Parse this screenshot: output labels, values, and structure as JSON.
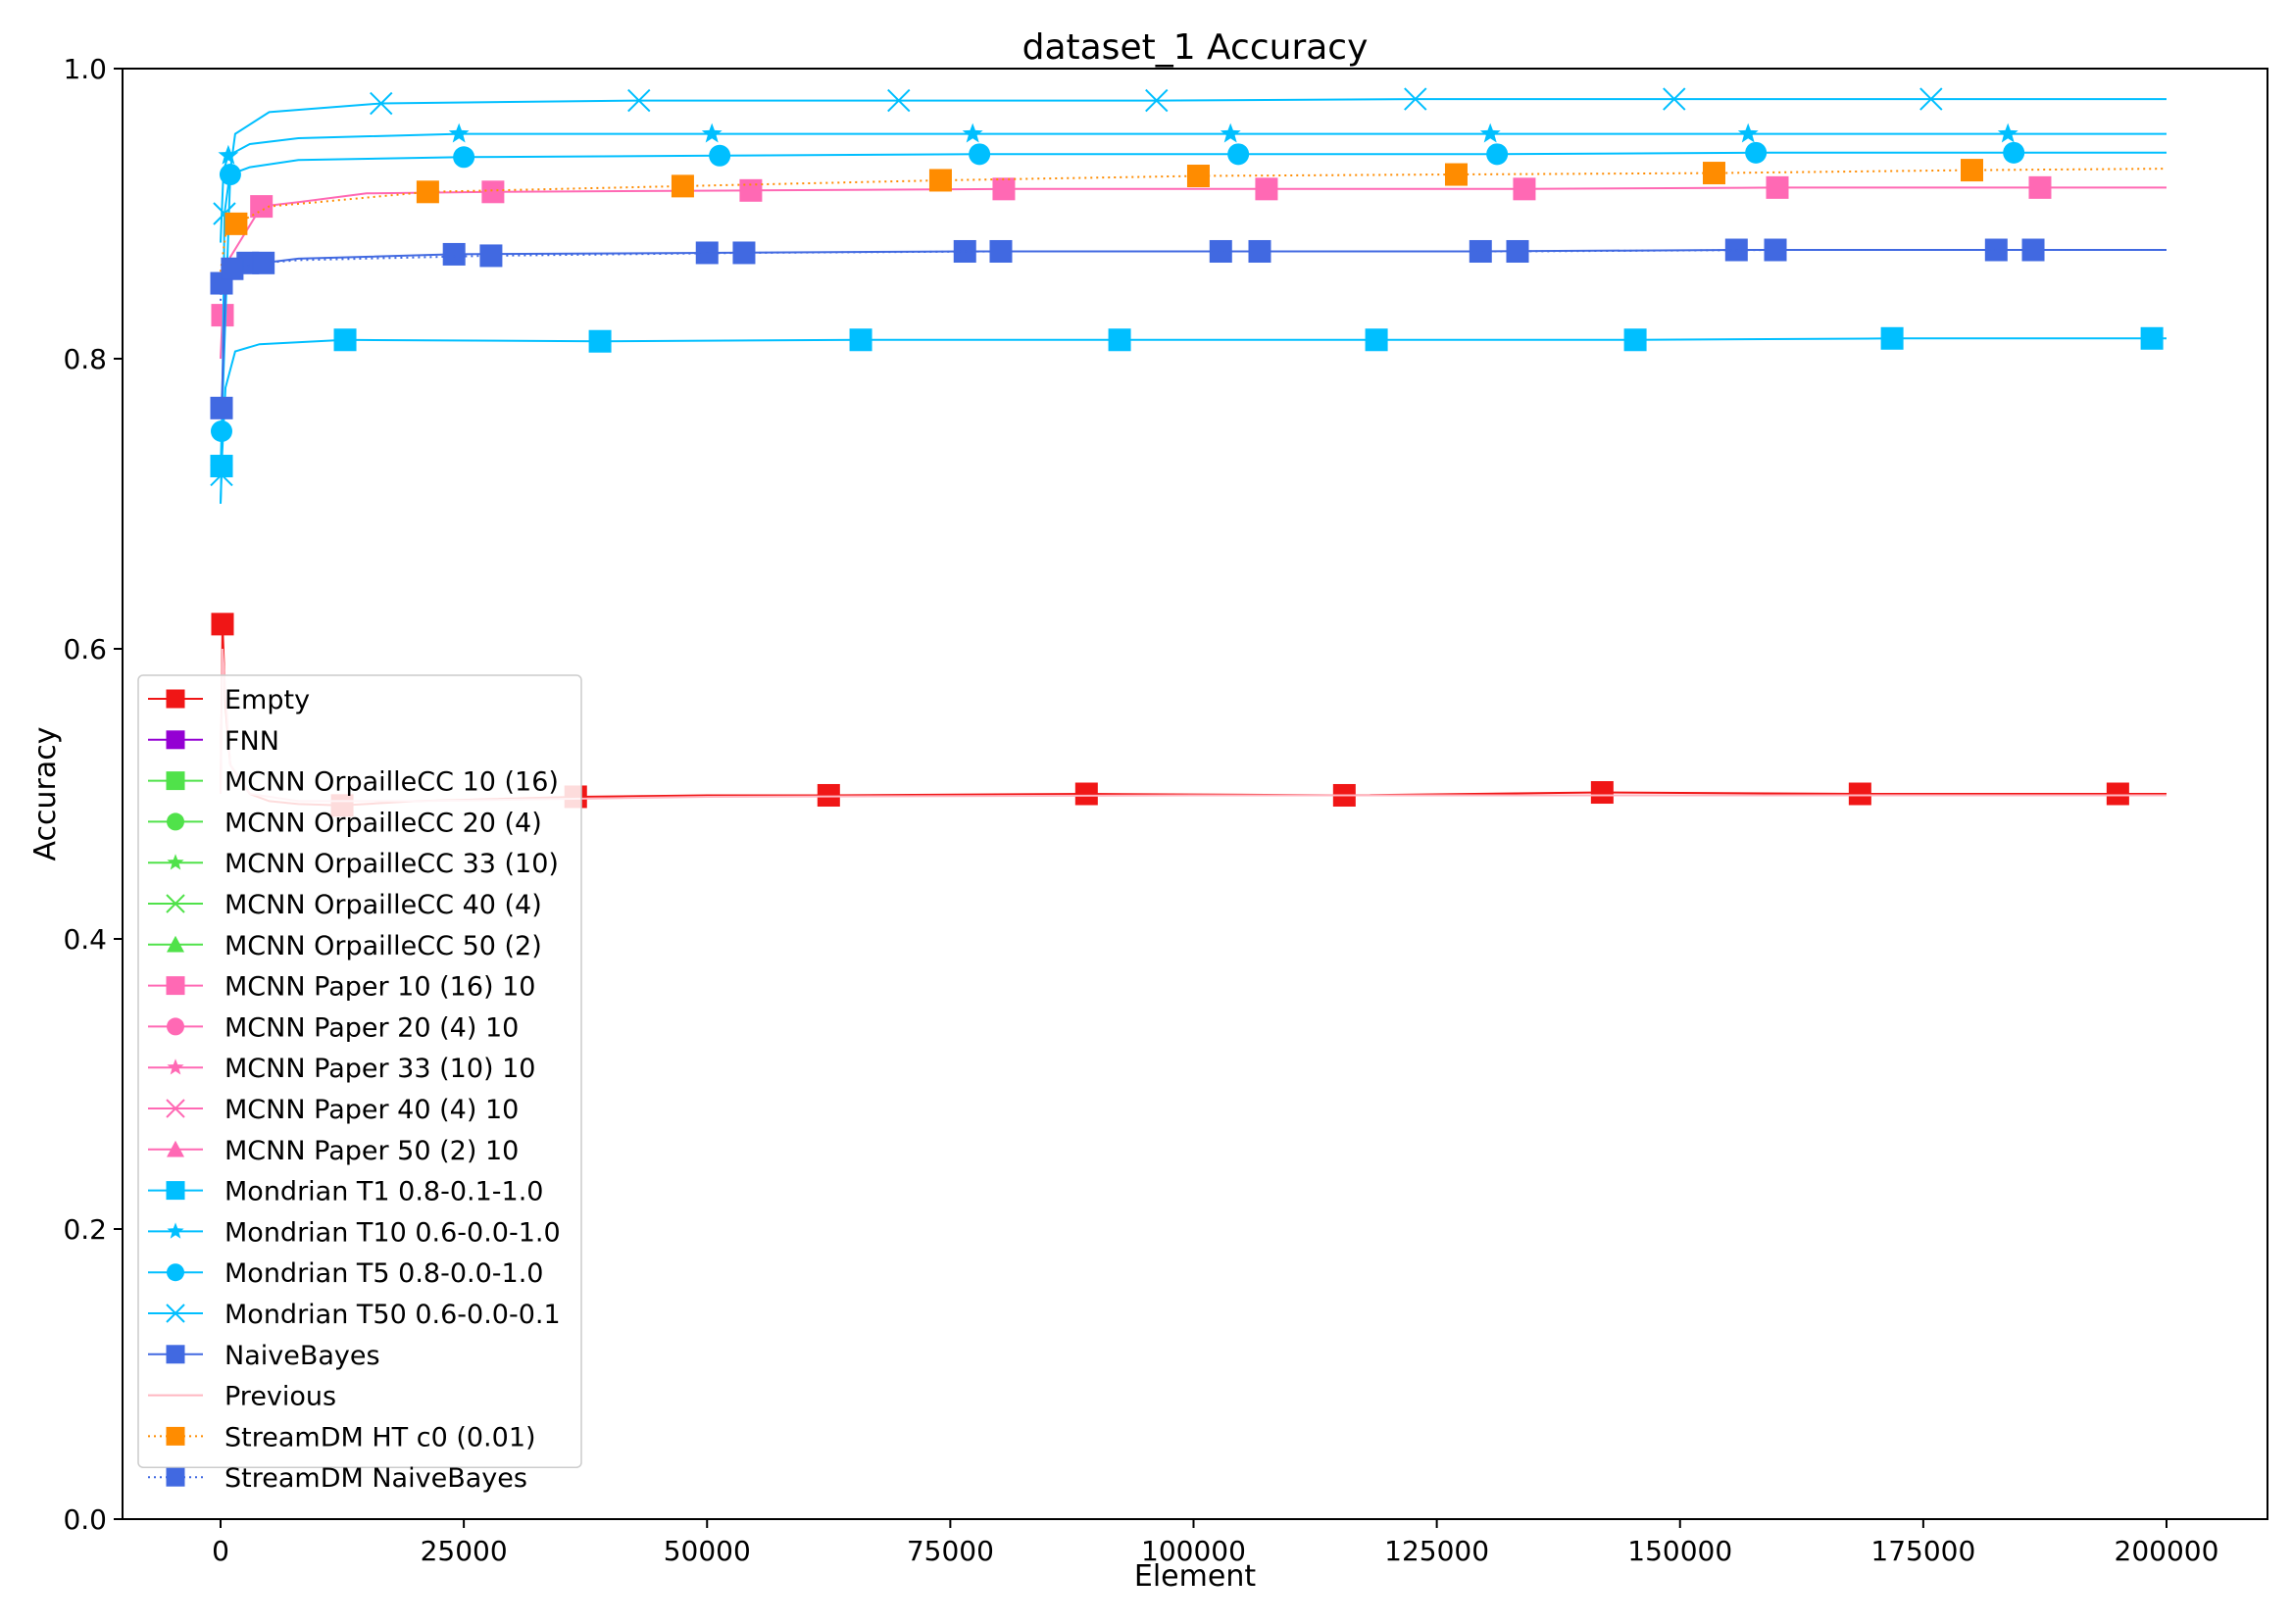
{
  "chart_data": {
    "type": "line",
    "title": "dataset_1 Accuracy",
    "xlabel": "Element",
    "ylabel": "Accuracy",
    "xlim": [
      -10000,
      210000
    ],
    "ylim": [
      0.0,
      1.0
    ],
    "xticks": [
      0,
      25000,
      50000,
      75000,
      100000,
      125000,
      150000,
      175000,
      200000
    ],
    "xtick_labels": [
      "0",
      "25000",
      "50000",
      "75000",
      "100000",
      "125000",
      "150000",
      "175000",
      "200000"
    ],
    "yticks": [
      0.0,
      0.2,
      0.4,
      0.6,
      0.8,
      1.0
    ],
    "ytick_labels": [
      "0.0",
      "0.2",
      "0.4",
      "0.6",
      "0.8",
      "1.0"
    ],
    "grid": false,
    "legend_position": "lower-left",
    "series": [
      {
        "name": "Empty",
        "color": "#f01616",
        "marker": "square",
        "linestyle": "solid",
        "x": [
          0,
          200,
          500,
          1000,
          3000,
          5000,
          8000,
          12500,
          20000,
          36500,
          50000,
          62500,
          89000,
          115500,
          142000,
          168500,
          195000,
          200000
        ],
        "y": [
          0.5,
          0.617,
          0.56,
          0.52,
          0.5,
          0.495,
          0.493,
          0.492,
          0.495,
          0.498,
          0.499,
          0.499,
          0.5,
          0.499,
          0.501,
          0.5,
          0.5,
          0.5
        ],
        "markers_x": [
          200,
          12500,
          36500,
          62500,
          89000,
          115500,
          142000,
          168500,
          195000
        ]
      },
      {
        "name": "FNN",
        "color": "#9400d3",
        "marker": "square",
        "linestyle": "solid",
        "x": [],
        "y": []
      },
      {
        "name": "MCNN OrpailleCC 10 (16)",
        "color": "#50e24a",
        "marker": "square",
        "linestyle": "solid",
        "x": [],
        "y": []
      },
      {
        "name": "MCNN OrpailleCC 20 (4)",
        "color": "#50e24a",
        "marker": "circle",
        "linestyle": "solid",
        "x": [],
        "y": []
      },
      {
        "name": "MCNN OrpailleCC 33 (10)",
        "color": "#50e24a",
        "marker": "star",
        "linestyle": "solid",
        "x": [],
        "y": []
      },
      {
        "name": "MCNN OrpailleCC 40 (4)",
        "color": "#50e24a",
        "marker": "x",
        "linestyle": "solid",
        "x": [],
        "y": []
      },
      {
        "name": "MCNN OrpailleCC 50 (2)",
        "color": "#50e24a",
        "marker": "triangle",
        "linestyle": "solid",
        "x": [],
        "y": []
      },
      {
        "name": "MCNN Paper 10 (16) 10",
        "color": "#ff69b4",
        "marker": "square",
        "linestyle": "solid",
        "x": [
          0,
          200,
          1000,
          4200,
          8000,
          15000,
          28000,
          54500,
          80500,
          107500,
          134000,
          160000,
          187000,
          200000
        ],
        "y": [
          0.8,
          0.83,
          0.87,
          0.905,
          0.908,
          0.914,
          0.915,
          0.916,
          0.917,
          0.917,
          0.917,
          0.918,
          0.918,
          0.918
        ],
        "markers_x": [
          200,
          4200,
          28000,
          54500,
          80500,
          107500,
          134000,
          160000,
          187000
        ]
      },
      {
        "name": "MCNN Paper 20 (4) 10",
        "color": "#ff69b4",
        "marker": "circle",
        "linestyle": "solid",
        "x": [],
        "y": []
      },
      {
        "name": "MCNN Paper 33 (10) 10",
        "color": "#ff69b4",
        "marker": "star",
        "linestyle": "solid",
        "x": [],
        "y": []
      },
      {
        "name": "MCNN Paper 40 (4) 10",
        "color": "#ff69b4",
        "marker": "x",
        "linestyle": "solid",
        "x": [],
        "y": []
      },
      {
        "name": "MCNN Paper 50 (2) 10",
        "color": "#ff69b4",
        "marker": "triangle",
        "linestyle": "solid",
        "x": [],
        "y": []
      },
      {
        "name": "Mondrian T1 0.8-0.1-1.0",
        "color": "#00bfff",
        "marker": "square",
        "linestyle": "solid",
        "x": [
          0,
          100,
          500,
          1500,
          4000,
          12800,
          39000,
          65800,
          92400,
          118800,
          145400,
          171800,
          198500,
          200000
        ],
        "y": [
          0.7,
          0.726,
          0.78,
          0.805,
          0.81,
          0.813,
          0.812,
          0.813,
          0.813,
          0.813,
          0.813,
          0.814,
          0.814,
          0.814
        ],
        "markers_x": [
          100,
          12800,
          39000,
          65800,
          92400,
          118800,
          145400,
          171800,
          198500
        ]
      },
      {
        "name": "Mondrian T10 0.6-0.0-1.0",
        "color": "#00bfff",
        "marker": "star",
        "linestyle": "solid",
        "x": [
          0,
          300,
          800,
          3000,
          8000,
          24500,
          50500,
          77300,
          103800,
          130500,
          157000,
          183700,
          200000
        ],
        "y": [
          0.88,
          0.93,
          0.94,
          0.948,
          0.952,
          0.955,
          0.955,
          0.955,
          0.955,
          0.955,
          0.955,
          0.955,
          0.955
        ],
        "markers_x": [
          800,
          24500,
          50500,
          77300,
          103800,
          130500,
          157000,
          183700
        ]
      },
      {
        "name": "Mondrian T5 0.8-0.0-1.0",
        "color": "#00bfff",
        "marker": "circle",
        "linestyle": "solid",
        "x": [
          0,
          100,
          1000,
          3000,
          8000,
          25000,
          51300,
          78000,
          104600,
          131200,
          157800,
          184300,
          200000
        ],
        "y": [
          0.72,
          0.75,
          0.927,
          0.932,
          0.937,
          0.939,
          0.94,
          0.941,
          0.941,
          0.941,
          0.942,
          0.942,
          0.942
        ],
        "markers_x": [
          100,
          1000,
          25000,
          51300,
          78000,
          104600,
          131200,
          157800,
          184300
        ]
      },
      {
        "name": "Mondrian T50 0.6-0.0-0.1",
        "color": "#00bfff",
        "marker": "x",
        "linestyle": "solid",
        "x": [
          0,
          100,
          400,
          1500,
          5000,
          16500,
          43000,
          69700,
          96200,
          122800,
          149400,
          175800,
          200000
        ],
        "y": [
          0.7,
          0.72,
          0.9,
          0.955,
          0.97,
          0.976,
          0.978,
          0.978,
          0.978,
          0.979,
          0.979,
          0.979,
          0.979
        ],
        "markers_x": [
          100,
          400,
          16500,
          43000,
          69700,
          96200,
          122800,
          149400,
          175800
        ]
      },
      {
        "name": "NaiveBayes",
        "color": "#4169e1",
        "marker": "square",
        "linestyle": "solid",
        "x": [
          0,
          100,
          500,
          2800,
          4400,
          8000,
          24000,
          50000,
          76500,
          102800,
          129500,
          155800,
          182500,
          200000
        ],
        "y": [
          0.76,
          0.766,
          0.85,
          0.866,
          0.866,
          0.869,
          0.872,
          0.873,
          0.874,
          0.874,
          0.874,
          0.875,
          0.875,
          0.875
        ],
        "markers_x": [
          100,
          2800,
          24000,
          50000,
          76500,
          102800,
          129500,
          155800,
          182500
        ]
      },
      {
        "name": "Previous",
        "color": "#ffb6c1",
        "marker": "none",
        "linestyle": "solid",
        "x": [
          0,
          200,
          1000,
          3000,
          8000,
          20000,
          50000,
          100000,
          150000,
          200000
        ],
        "y": [
          0.5,
          0.6,
          0.52,
          0.5,
          0.495,
          0.495,
          0.498,
          0.499,
          0.499,
          0.499
        ],
        "markers_x": []
      },
      {
        "name": "StreamDM HT c0 (0.01)",
        "color": "#ff8c00",
        "marker": "square",
        "linestyle": "dotted",
        "x": [
          0,
          500,
          1600,
          5000,
          10000,
          21300,
          47500,
          74000,
          100500,
          127000,
          153500,
          180000,
          200000
        ],
        "y": [
          0.86,
          0.885,
          0.893,
          0.905,
          0.908,
          0.915,
          0.919,
          0.923,
          0.926,
          0.927,
          0.928,
          0.93,
          0.931
        ],
        "markers_x": [
          1600,
          21300,
          47500,
          74000,
          100500,
          127000,
          153500,
          180000
        ]
      },
      {
        "name": "StreamDM NaiveBayes",
        "color": "#4169e1",
        "marker": "square",
        "linestyle": "dotted",
        "x": [
          0,
          100,
          500,
          1200,
          4400,
          8000,
          27800,
          53800,
          80200,
          106800,
          133300,
          159800,
          186300,
          200000
        ],
        "y": [
          0.84,
          0.852,
          0.86,
          0.862,
          0.866,
          0.868,
          0.871,
          0.873,
          0.874,
          0.874,
          0.874,
          0.875,
          0.875,
          0.875
        ],
        "markers_x": [
          100,
          1200,
          4400,
          27800,
          53800,
          80200,
          106800,
          133300,
          159800,
          186300
        ]
      }
    ]
  }
}
